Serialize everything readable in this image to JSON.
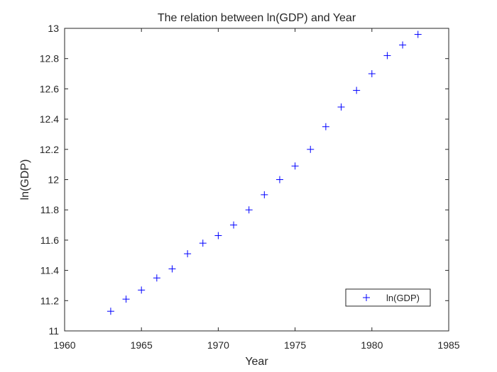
{
  "chart_data": {
    "type": "scatter",
    "title": "The relation between ln(GDP) and Year",
    "xlabel": "Year",
    "ylabel": "ln(GDP)",
    "xlim": [
      1960,
      1985
    ],
    "ylim": [
      11,
      13
    ],
    "xticks": [
      1960,
      1965,
      1970,
      1975,
      1980,
      1985
    ],
    "yticks": [
      11,
      11.2,
      11.4,
      11.6,
      11.8,
      12,
      12.2,
      12.4,
      12.6,
      12.8,
      13
    ],
    "xtick_labels": [
      "1960",
      "1965",
      "1970",
      "1975",
      "1980",
      "1985"
    ],
    "ytick_labels": [
      "11",
      "11.2",
      "11.4",
      "11.6",
      "11.8",
      "12",
      "12.2",
      "12.4",
      "12.6",
      "12.8",
      "13"
    ],
    "grid": false,
    "legend_position": "bottom-right",
    "series": [
      {
        "name": "ln(GDP)",
        "marker": "plus",
        "color": "#0000ff",
        "x": [
          1963,
          1964,
          1965,
          1966,
          1967,
          1968,
          1969,
          1970,
          1971,
          1972,
          1973,
          1974,
          1975,
          1976,
          1977,
          1978,
          1979,
          1980,
          1981,
          1982,
          1983
        ],
        "y": [
          11.13,
          11.21,
          11.27,
          11.35,
          11.41,
          11.51,
          11.58,
          11.63,
          11.7,
          11.8,
          11.9,
          12.0,
          12.09,
          12.2,
          12.35,
          12.48,
          12.59,
          12.7,
          12.82,
          12.89,
          12.96
        ]
      }
    ]
  }
}
